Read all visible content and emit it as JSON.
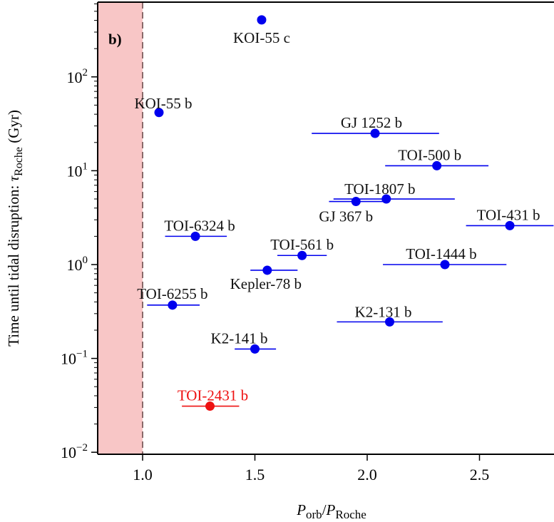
{
  "chart_data": {
    "type": "scatter",
    "panel_label": "b)",
    "xlabel": {
      "main": "P",
      "sub1": "orb",
      "slash": "/",
      "main2": "P",
      "sub2": "Roche"
    },
    "ylabel": {
      "text": "Time until tidal disruption: ",
      "tau": "τ",
      "sub": "Roche",
      "unit": " (Gyr)"
    },
    "xlim": [
      0.8,
      2.83
    ],
    "ylim": [
      0.01,
      630
    ],
    "yscale": "log",
    "xticks": [
      1.0,
      1.5,
      2.0,
      2.5
    ],
    "xtick_labels": [
      "1.0",
      "1.5",
      "2.0",
      "2.5"
    ],
    "yticks": [
      {
        "value": 0.01,
        "base": "10",
        "exp": "−2"
      },
      {
        "value": 0.1,
        "base": "10",
        "exp": "−1"
      },
      {
        "value": 1,
        "base": "10",
        "exp": "0"
      },
      {
        "value": 10,
        "base": "10",
        "exp": "1"
      },
      {
        "value": 100,
        "base": "10",
        "exp": "2"
      }
    ],
    "grid": false,
    "roche_region": {
      "x_from": 0.8,
      "x_to": 1.0,
      "color": "#f8c6c6",
      "line_color": "#8a6a6a"
    },
    "colors": {
      "default": "#0000ee",
      "highlight": "#ee1111",
      "label": "#111111"
    },
    "points": [
      {
        "name": "KOI-55 c",
        "x": 1.53,
        "y": 405
      },
      {
        "name": "KOI-55 b",
        "x": 1.073,
        "y": 41.7
      },
      {
        "name": "GJ 1252 b",
        "x": 2.035,
        "y": 25,
        "xerr": [
          1.753,
          2.32
        ]
      },
      {
        "name": "TOI-500 b",
        "x": 2.31,
        "y": 11.3,
        "xerr": [
          2.08,
          2.54
        ]
      },
      {
        "name": "TOI-1807 b",
        "x": 2.085,
        "y": 5.0,
        "xerr": [
          1.85,
          2.39
        ]
      },
      {
        "name": "GJ 367 b",
        "x": 1.95,
        "y": 4.7,
        "xerr": [
          1.83,
          2.085
        ]
      },
      {
        "name": "TOI-431 b",
        "x": 2.635,
        "y": 2.6,
        "xerr": [
          2.44,
          2.83
        ]
      },
      {
        "name": "TOI-6324 b",
        "x": 1.235,
        "y": 2.0,
        "xerr": [
          1.1,
          1.375
        ]
      },
      {
        "name": "TOI-561 b",
        "x": 1.71,
        "y": 1.25,
        "xerr": [
          1.6,
          1.82
        ]
      },
      {
        "name": "TOI-1444 b",
        "x": 2.346,
        "y": 1.0,
        "xerr": [
          2.07,
          2.62
        ]
      },
      {
        "name": "Kepler-78 b",
        "x": 1.555,
        "y": 0.87,
        "xerr": [
          1.48,
          1.69
        ]
      },
      {
        "name": "TOI-6255 b",
        "x": 1.133,
        "y": 0.37,
        "xerr": [
          1.02,
          1.254
        ]
      },
      {
        "name": "K2-131 b",
        "x": 2.1,
        "y": 0.245,
        "xerr": [
          1.865,
          2.336
        ]
      },
      {
        "name": "K2-141 b",
        "x": 1.5,
        "y": 0.126,
        "xerr": [
          1.41,
          1.594
        ]
      },
      {
        "name": "TOI-2431 b",
        "x": 1.3,
        "y": 0.031,
        "xerr": [
          1.175,
          1.43
        ],
        "highlight": true
      }
    ]
  }
}
